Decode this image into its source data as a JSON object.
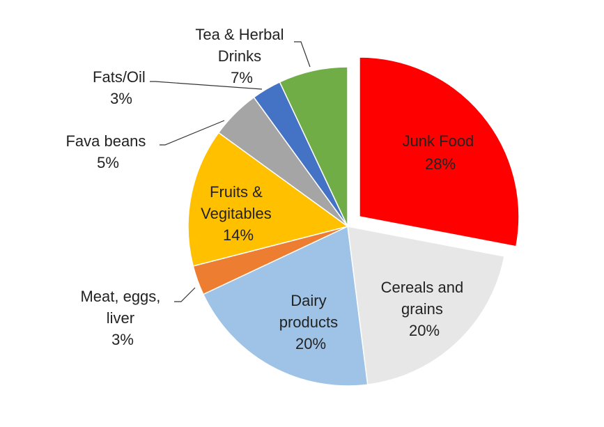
{
  "chart_data": {
    "type": "pie",
    "title": "",
    "slices": [
      {
        "label": "Junk Food",
        "value": 28,
        "label_text": "28%",
        "color": "#ff0000",
        "exploded": true
      },
      {
        "label": "Cereals and grains",
        "value": 20,
        "label_text": "20%",
        "color": "#e7e7e7",
        "exploded": false
      },
      {
        "label": "Dairy products",
        "value": 20,
        "label_text": "20%",
        "color": "#9fc3e6",
        "exploded": false
      },
      {
        "label": "Meat, eggs, liver",
        "value": 3,
        "label_text": "3%",
        "color": "#ed7d31",
        "exploded": false
      },
      {
        "label": "Fruits & Vegitables",
        "value": 14,
        "label_text": "14%",
        "color": "#ffc000",
        "exploded": false
      },
      {
        "label": "Fava beans",
        "value": 5,
        "label_text": "5%",
        "color": "#a5a5a5",
        "exploded": false
      },
      {
        "label": "Fats/Oil",
        "value": 3,
        "label_text": "3%",
        "color": "#4472c4",
        "exploded": false
      },
      {
        "label": "Tea & Herbal Drinks",
        "value": 7,
        "label_text": "7%",
        "color": "#70ad47",
        "exploded": false
      }
    ],
    "labels": {
      "junk": {
        "lines": [
          "Junk Food",
          "28%"
        ]
      },
      "cereals": {
        "lines": [
          "Cereals and",
          "grains",
          "20%"
        ]
      },
      "dairy": {
        "lines": [
          "Dairy",
          "products",
          "20%"
        ]
      },
      "meat": {
        "lines": [
          "Meat, eggs,",
          "liver",
          "3%"
        ]
      },
      "fruits": {
        "lines": [
          "Fruits &",
          "Vegitables",
          "14%"
        ]
      },
      "fava": {
        "lines": [
          "Fava beans",
          "5%"
        ]
      },
      "fats": {
        "lines": [
          "Fats/Oil",
          "3%"
        ]
      },
      "tea": {
        "lines": [
          "Tea & Herbal",
          "Drinks",
          "7%"
        ]
      }
    },
    "start_angle_deg": 0,
    "direction": "clockwise",
    "legend": "none"
  }
}
